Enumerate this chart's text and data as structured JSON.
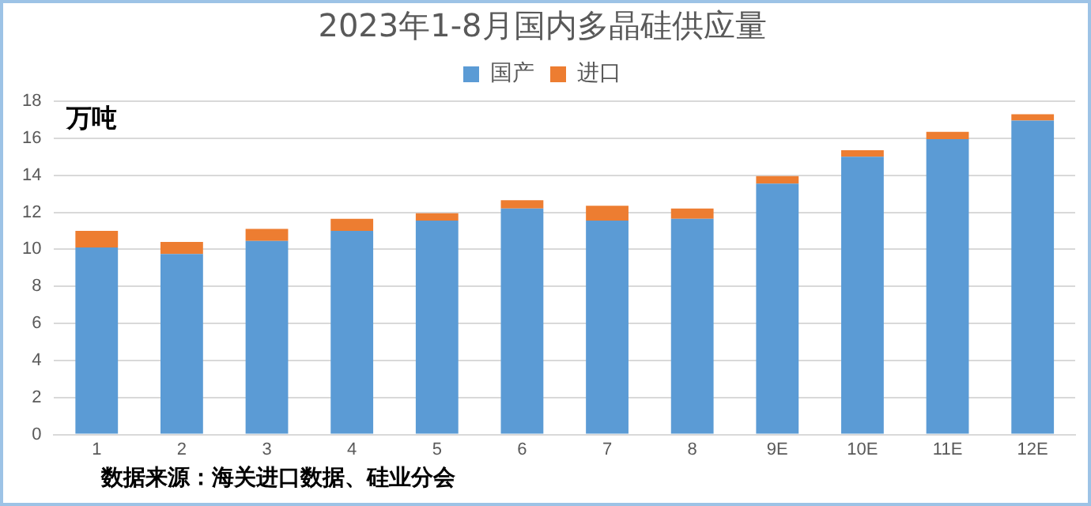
{
  "chart_data": {
    "type": "bar",
    "title": "2023年1-8月国内多晶硅供应量",
    "ylabel": "万吨",
    "stacked": true,
    "categories": [
      "1",
      "2",
      "3",
      "4",
      "5",
      "6",
      "7",
      "8",
      "9E",
      "10E",
      "11E",
      "12E"
    ],
    "series": [
      {
        "name": "国产",
        "color": "#5b9bd5",
        "values": [
          10.1,
          9.75,
          10.45,
          11.0,
          11.55,
          12.2,
          11.55,
          11.65,
          13.55,
          15.0,
          15.95,
          16.95
        ]
      },
      {
        "name": "进口",
        "color": "#ed7d31",
        "values": [
          0.9,
          0.65,
          0.65,
          0.65,
          0.4,
          0.45,
          0.8,
          0.55,
          0.4,
          0.35,
          0.4,
          0.35
        ]
      }
    ],
    "ylim": [
      0,
      18
    ],
    "yticks": [
      0,
      2,
      4,
      6,
      8,
      10,
      12,
      14,
      16,
      18
    ],
    "grid": "y",
    "legend": "top",
    "annotations": [
      "数据来源：海关进口数据、硅业分会"
    ]
  }
}
